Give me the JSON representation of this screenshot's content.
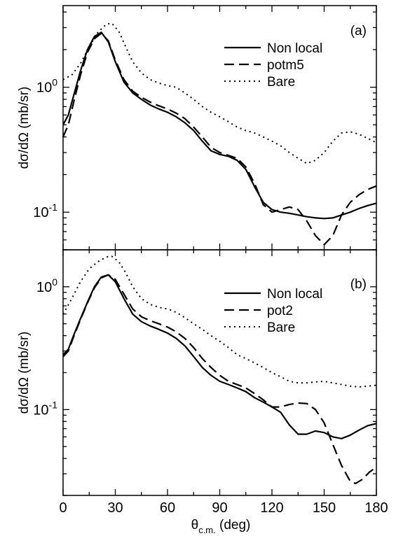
{
  "chart_data": [
    {
      "type": "line",
      "panel_label": "(a)",
      "xlabel": "",
      "ylabel": "dσ/dΩ (mb/sr)",
      "xlim": [
        0,
        180
      ],
      "ylim": [
        0.05,
        4.5
      ],
      "yscale": "log",
      "xticks": [
        "0",
        "30",
        "60",
        "90",
        "120",
        "150",
        "180"
      ],
      "yticks": [
        {
          "value": 1,
          "mantissa": "10",
          "exponent": "0"
        },
        {
          "value": 0.1,
          "mantissa": "10",
          "exponent": "-1"
        }
      ],
      "legend_position": "top-right",
      "series": [
        {
          "name": "Non local",
          "style": "solid",
          "x": [
            0,
            3,
            6,
            10,
            14,
            18,
            22,
            26,
            30,
            35,
            40,
            45,
            50,
            55,
            60,
            65,
            70,
            75,
            80,
            85,
            90,
            95,
            100,
            105,
            110,
            115,
            120,
            125,
            130,
            135,
            140,
            145,
            150,
            155,
            160,
            165,
            170,
            175,
            180
          ],
          "y": [
            0.5,
            0.6,
            0.85,
            1.35,
            2.0,
            2.55,
            2.75,
            2.3,
            1.6,
            1.1,
            0.9,
            0.8,
            0.72,
            0.67,
            0.63,
            0.58,
            0.52,
            0.45,
            0.37,
            0.31,
            0.29,
            0.28,
            0.26,
            0.22,
            0.16,
            0.12,
            0.105,
            0.1,
            0.098,
            0.095,
            0.092,
            0.09,
            0.089,
            0.09,
            0.095,
            0.1,
            0.107,
            0.113,
            0.118
          ]
        },
        {
          "name": "potm5",
          "style": "dashed",
          "x": [
            0,
            3,
            6,
            10,
            14,
            18,
            22,
            26,
            30,
            35,
            40,
            45,
            50,
            55,
            60,
            65,
            70,
            75,
            80,
            85,
            90,
            95,
            100,
            105,
            110,
            115,
            120,
            125,
            130,
            135,
            140,
            145,
            150,
            155,
            160,
            165,
            170,
            175,
            180
          ],
          "y": [
            0.4,
            0.5,
            0.75,
            1.25,
            1.9,
            2.45,
            2.7,
            2.35,
            1.65,
            1.15,
            0.93,
            0.83,
            0.76,
            0.71,
            0.67,
            0.62,
            0.56,
            0.48,
            0.4,
            0.33,
            0.3,
            0.285,
            0.27,
            0.23,
            0.17,
            0.115,
            0.1,
            0.105,
            0.11,
            0.105,
            0.085,
            0.065,
            0.055,
            0.065,
            0.095,
            0.12,
            0.138,
            0.152,
            0.162
          ]
        },
        {
          "name": "Bare",
          "style": "dotted",
          "x": [
            0,
            5,
            10,
            15,
            20,
            25,
            28,
            32,
            36,
            40,
            45,
            50,
            55,
            60,
            65,
            70,
            75,
            80,
            85,
            90,
            95,
            100,
            105,
            110,
            115,
            120,
            125,
            130,
            135,
            140,
            145,
            150,
            155,
            160,
            165,
            170,
            175,
            180
          ],
          "y": [
            1.15,
            1.25,
            1.55,
            2.1,
            2.75,
            3.2,
            3.25,
            2.8,
            2.1,
            1.6,
            1.3,
            1.15,
            1.08,
            1.03,
            1.0,
            0.9,
            0.8,
            0.7,
            0.63,
            0.58,
            0.53,
            0.48,
            0.45,
            0.43,
            0.4,
            0.37,
            0.34,
            0.3,
            0.27,
            0.245,
            0.26,
            0.3,
            0.37,
            0.43,
            0.44,
            0.42,
            0.39,
            0.36
          ]
        }
      ]
    },
    {
      "type": "line",
      "panel_label": "(b)",
      "xlabel": "θc.m. (deg)",
      "xlabel_main": "θ",
      "xlabel_sub": "c.m.",
      "xlabel_unit": " (deg)",
      "ylabel": "dσ/dΩ (mb/sr)",
      "xlim": [
        0,
        180
      ],
      "ylim": [
        0.02,
        2.0
      ],
      "yscale": "log",
      "xticks": [
        "0",
        "30",
        "60",
        "90",
        "120",
        "150",
        "180"
      ],
      "yticks": [
        {
          "value": 1,
          "mantissa": "10",
          "exponent": "0"
        },
        {
          "value": 0.1,
          "mantissa": "10",
          "exponent": "-1"
        }
      ],
      "legend_position": "top-right",
      "series": [
        {
          "name": "Non local",
          "style": "solid",
          "x": [
            0,
            3,
            6,
            10,
            14,
            18,
            22,
            26,
            30,
            35,
            40,
            45,
            50,
            55,
            60,
            65,
            70,
            75,
            80,
            85,
            90,
            95,
            100,
            105,
            110,
            115,
            120,
            125,
            130,
            135,
            140,
            145,
            150,
            155,
            160,
            165,
            170,
            175,
            180
          ],
          "y": [
            0.28,
            0.31,
            0.4,
            0.55,
            0.75,
            1.0,
            1.2,
            1.25,
            1.1,
            0.8,
            0.6,
            0.52,
            0.48,
            0.45,
            0.42,
            0.38,
            0.33,
            0.27,
            0.22,
            0.19,
            0.17,
            0.16,
            0.15,
            0.14,
            0.125,
            0.115,
            0.105,
            0.095,
            0.075,
            0.063,
            0.063,
            0.067,
            0.065,
            0.06,
            0.058,
            0.062,
            0.068,
            0.074,
            0.077
          ]
        },
        {
          "name": "pot2",
          "style": "dashed",
          "x": [
            0,
            3,
            6,
            10,
            14,
            18,
            22,
            26,
            30,
            35,
            40,
            45,
            50,
            55,
            60,
            65,
            70,
            75,
            80,
            85,
            90,
            95,
            100,
            105,
            110,
            115,
            120,
            125,
            130,
            135,
            140,
            145,
            150,
            155,
            160,
            165,
            168,
            172,
            176,
            180
          ],
          "y": [
            0.27,
            0.3,
            0.39,
            0.54,
            0.74,
            0.98,
            1.18,
            1.25,
            1.15,
            0.87,
            0.66,
            0.57,
            0.53,
            0.5,
            0.47,
            0.43,
            0.38,
            0.32,
            0.26,
            0.22,
            0.19,
            0.17,
            0.16,
            0.15,
            0.135,
            0.12,
            0.105,
            0.105,
            0.11,
            0.113,
            0.112,
            0.1,
            0.078,
            0.052,
            0.035,
            0.026,
            0.025,
            0.027,
            0.031,
            0.034
          ]
        },
        {
          "name": "Bare",
          "style": "dotted",
          "x": [
            0,
            5,
            10,
            15,
            20,
            25,
            28,
            32,
            36,
            40,
            45,
            50,
            55,
            60,
            65,
            70,
            75,
            80,
            85,
            90,
            95,
            100,
            105,
            110,
            115,
            120,
            125,
            130,
            135,
            140,
            145,
            150,
            155,
            160,
            165,
            170,
            175,
            180
          ],
          "y": [
            0.6,
            0.8,
            1.1,
            1.4,
            1.6,
            1.75,
            1.77,
            1.6,
            1.3,
            1.0,
            0.8,
            0.72,
            0.68,
            0.66,
            0.62,
            0.56,
            0.5,
            0.45,
            0.4,
            0.36,
            0.32,
            0.28,
            0.26,
            0.24,
            0.22,
            0.2,
            0.185,
            0.17,
            0.165,
            0.165,
            0.168,
            0.17,
            0.165,
            0.16,
            0.155,
            0.153,
            0.155,
            0.158
          ]
        }
      ]
    }
  ]
}
